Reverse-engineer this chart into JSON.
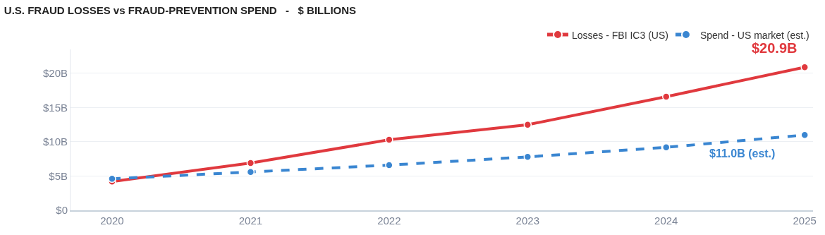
{
  "chart_data": {
    "type": "line",
    "title": "U.S. FRAUD LOSSES vs FRAUD-PREVENTION SPEND   -   $ BILLIONS",
    "x": [
      2020,
      2021,
      2022,
      2023,
      2024,
      2025
    ],
    "series": [
      {
        "name": "Losses - FBI IC3 (US)",
        "color": "#e0393e",
        "values": [
          4.2,
          6.9,
          10.3,
          12.5,
          16.6,
          20.9
        ],
        "line_style": "solid"
      },
      {
        "name": "Spend - US market (est.)",
        "color": "#3a86d1",
        "values": [
          4.6,
          5.6,
          6.6,
          7.8,
          9.2,
          11.0
        ],
        "line_style": "dashed"
      }
    ],
    "xlim": [
      2019.7,
      2025.06
    ],
    "xticks": [
      2020,
      2021,
      2022,
      2023,
      2024,
      2025
    ],
    "ylim": [
      0,
      23.5
    ],
    "yticks": [
      {
        "value": 0,
        "label": "$0"
      },
      {
        "value": 5,
        "label": "$5B"
      },
      {
        "value": 10,
        "label": "$10B"
      },
      {
        "value": 15,
        "label": "$15B"
      },
      {
        "value": 20,
        "label": "$20B"
      }
    ],
    "annotations": [
      {
        "text": "$20.9B",
        "x": 2025,
        "y": 20.9
      },
      {
        "text": "$11.0B (est.)",
        "x": 2025,
        "y": 11.0
      }
    ],
    "grid": "y",
    "legend": "top right",
    "marker": "circle"
  }
}
